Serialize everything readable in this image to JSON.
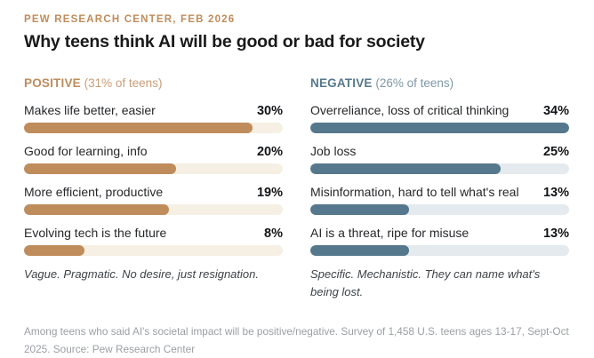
{
  "header": {
    "eyebrow": "PEW RESEARCH CENTER, FEB 2026",
    "title": "Why teens think AI will be good or bad for society"
  },
  "chart_data": {
    "type": "bar",
    "orientation": "horizontal",
    "scale_max": 34,
    "value_suffix": "%",
    "columns": [
      {
        "label": "POSITIVE",
        "sub": "(31% of teens)",
        "accent": "#bf8c5c",
        "accent_light": "#c89e77",
        "track": "#f6efe3",
        "rows": [
          {
            "label": "Makes life better, easier",
            "value": 30,
            "display": "30%"
          },
          {
            "label": "Good for learning, info",
            "value": 20,
            "display": "20%"
          },
          {
            "label": "More efficient, productive",
            "value": 19,
            "display": "19%"
          },
          {
            "label": "Evolving tech is the future",
            "value": 8,
            "display": "8%"
          }
        ],
        "summary": "Vague. Pragmatic. No desire, just resignation."
      },
      {
        "label": "NEGATIVE",
        "sub": "(26% of teens)",
        "accent": "#56788c",
        "accent_light": "#7e98a8",
        "track": "#e4eaed",
        "rows": [
          {
            "label": "Overreliance, loss of critical thinking",
            "value": 34,
            "display": "34%"
          },
          {
            "label": "Job loss",
            "value": 25,
            "display": "25%"
          },
          {
            "label": "Misinformation, hard to tell what's real",
            "value": 13,
            "display": "13%"
          },
          {
            "label": "AI is a threat, ripe for misuse",
            "value": 13,
            "display": "13%"
          }
        ],
        "summary": "Specific. Mechanistic. They can name what's being lost."
      }
    ]
  },
  "footer": {
    "note": "Among teens who said AI's societal impact will be positive/negative. Survey of 1,458 U.S. teens ages 13-17, Sept-Oct 2025. Source: Pew Research Center"
  }
}
